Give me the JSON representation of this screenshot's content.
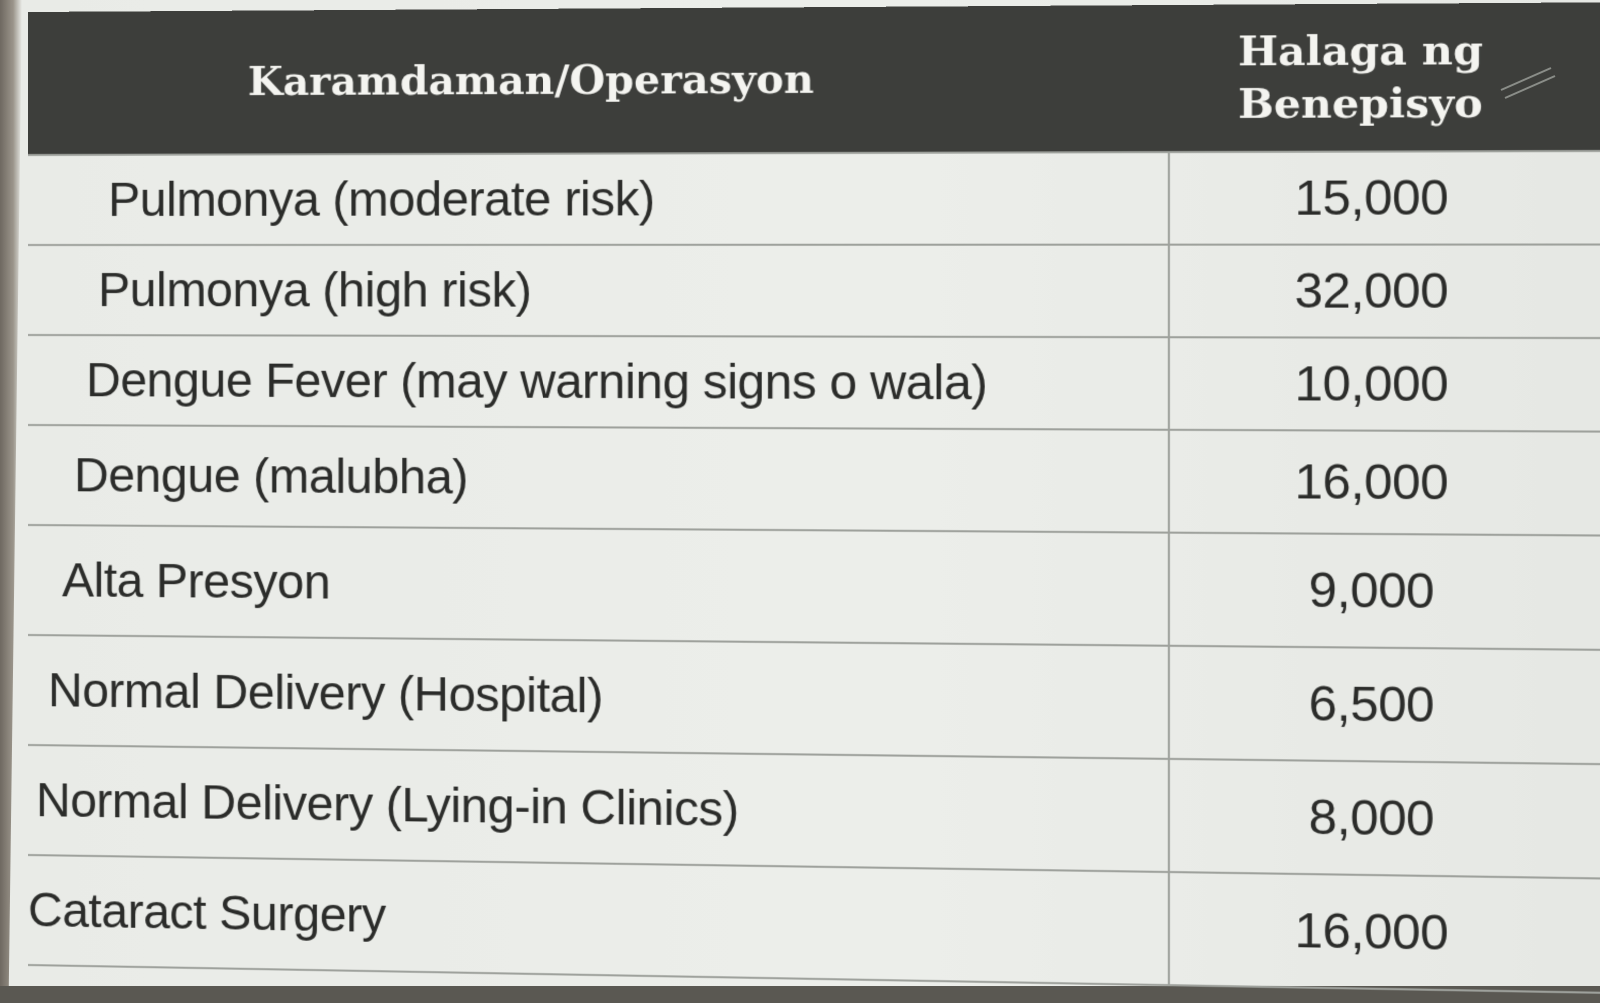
{
  "table": {
    "header": {
      "name": "Karamdaman/Operasyon",
      "amount_line1": "Halaga ng",
      "amount_line2": "Benepisyo"
    },
    "rows": [
      {
        "name": "Pulmonya (moderate risk)",
        "amount": "15,000"
      },
      {
        "name": "Pulmonya (high risk)",
        "amount": "32,000"
      },
      {
        "name": "Dengue Fever (may warning signs o wala)",
        "amount": "10,000"
      },
      {
        "name": "Dengue (malubha)",
        "amount": "16,000"
      },
      {
        "name": "Alta Presyon",
        "amount": "9,000"
      },
      {
        "name": "Normal Delivery (Hospital)",
        "amount": "6,500"
      },
      {
        "name": "Normal Delivery (Lying-in Clinics)",
        "amount": "8,000"
      },
      {
        "name": "Cataract Surgery",
        "amount": "16,000"
      }
    ]
  },
  "colors": {
    "header_bg": "#3d3e3b",
    "header_text": "#f4f4f0",
    "paper": "#eceeea",
    "rule": "#9ea19c",
    "body_text": "#2b2c2a"
  }
}
